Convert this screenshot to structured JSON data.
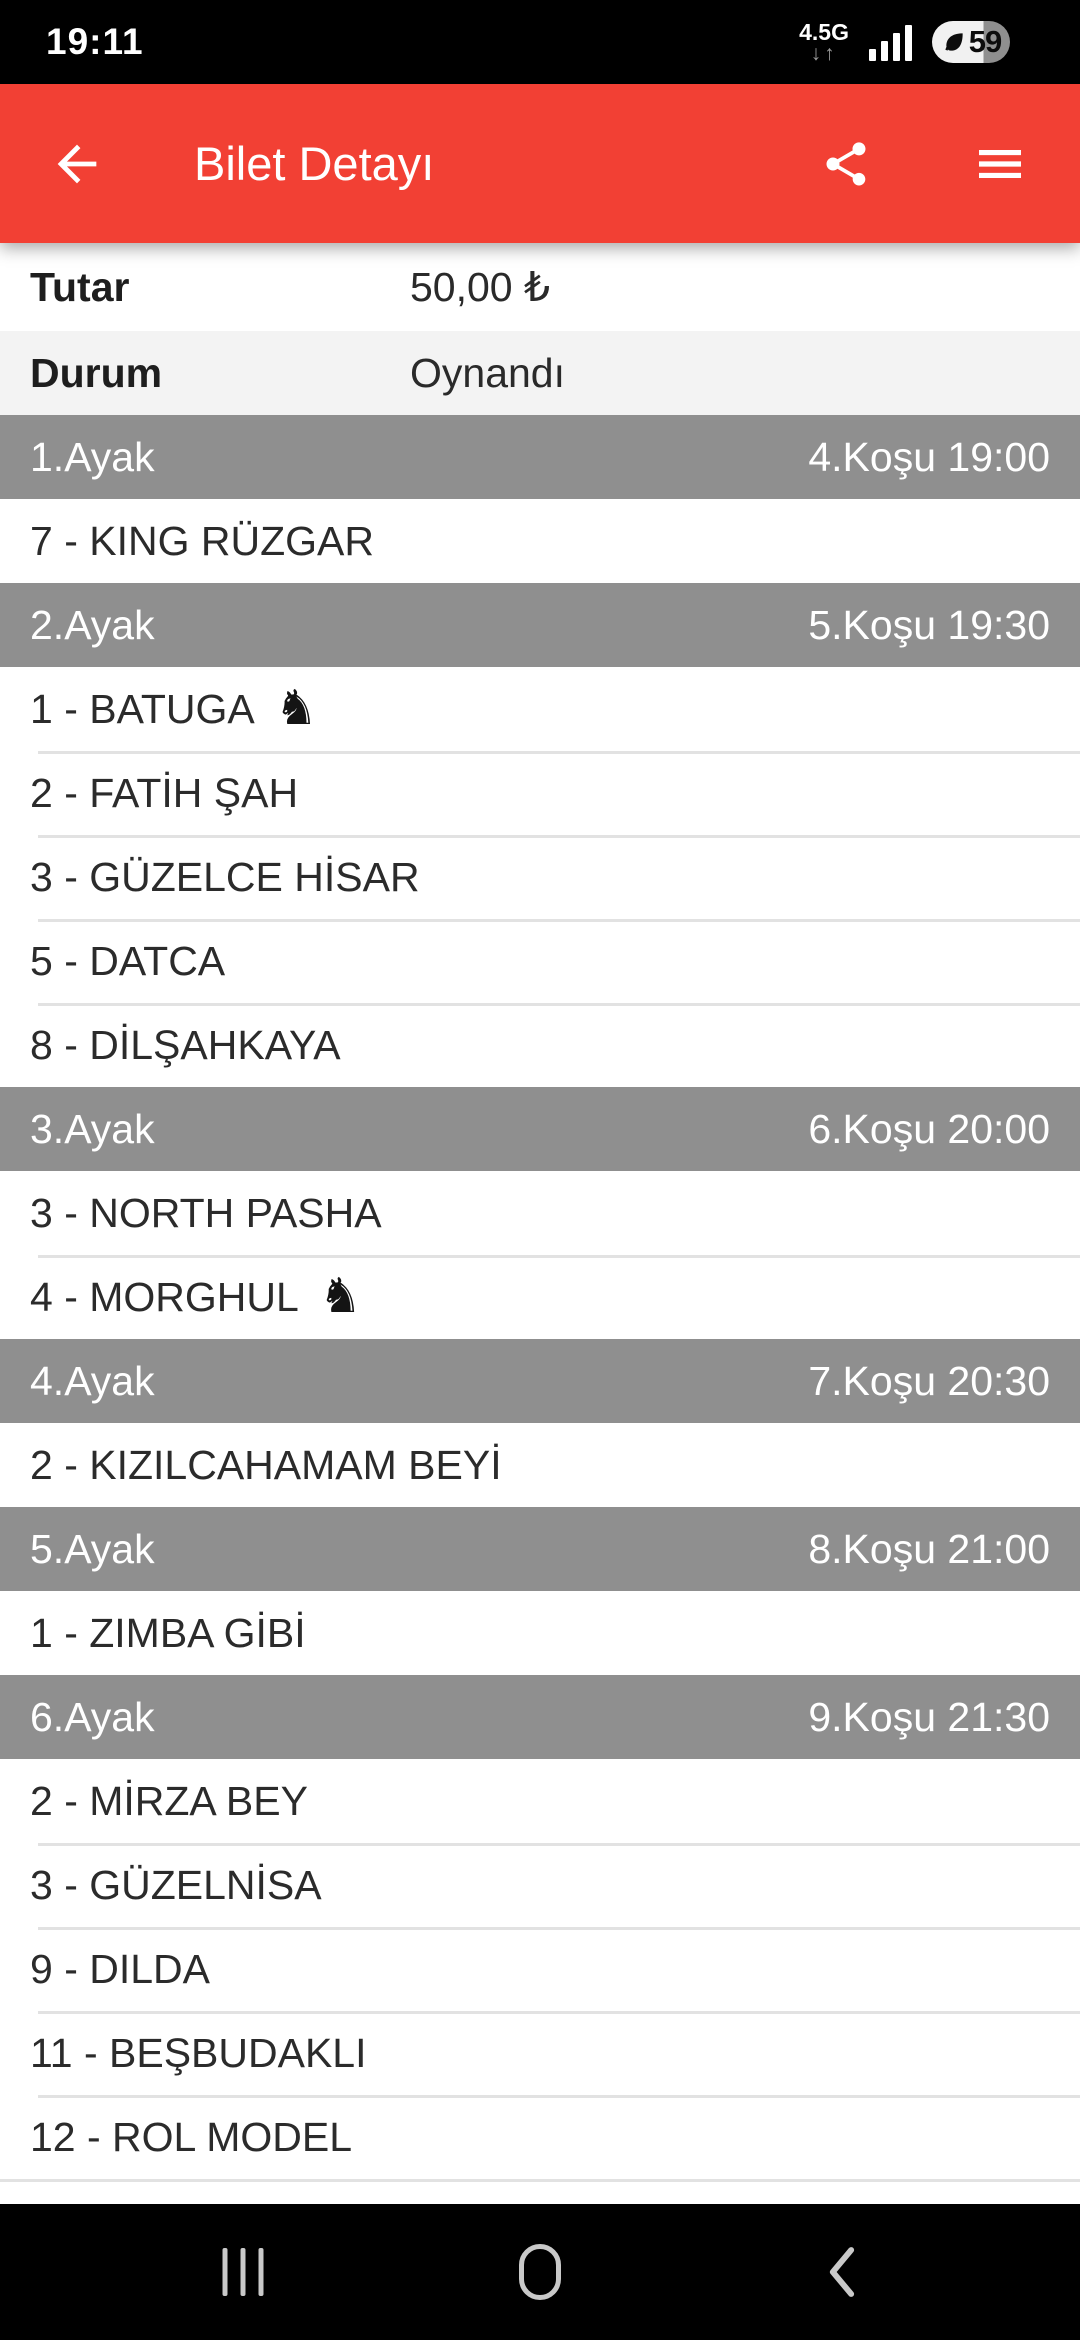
{
  "colors": {
    "app_bar": "#F24034",
    "section_header": "#8F8F8F",
    "status_row_bg": "#F3F3F3",
    "divider": "#E2E2E2",
    "status_bar_bg": "#000000",
    "nav_icon": "#C9C9C9"
  },
  "status_bar": {
    "time": "19:11",
    "network_label": "4.5G",
    "network_arrows": "↓↑",
    "battery_level": "59"
  },
  "app_bar": {
    "title": "Bilet Detayı"
  },
  "ticket": {
    "amount_label": "Tutar",
    "amount_value": "50,00 ₺",
    "status_label": "Durum",
    "status_value": "Oynandı"
  },
  "legs": [
    {
      "leg": "1.Ayak",
      "race": "4.Koşu 19:00",
      "horses": [
        {
          "name": "7 - KING RÜZGAR",
          "has_icon": false
        }
      ]
    },
    {
      "leg": "2.Ayak",
      "race": "5.Koşu 19:30",
      "horses": [
        {
          "name": "1 - BATUGA",
          "has_icon": true
        },
        {
          "name": "2 - FATİH ŞAH",
          "has_icon": false
        },
        {
          "name": "3 - GÜZELCE HİSAR",
          "has_icon": false
        },
        {
          "name": "5 - DATCA",
          "has_icon": false
        },
        {
          "name": "8 - DİLŞAHKAYA",
          "has_icon": false
        }
      ]
    },
    {
      "leg": "3.Ayak",
      "race": "6.Koşu 20:00",
      "horses": [
        {
          "name": "3 - NORTH PASHA",
          "has_icon": false
        },
        {
          "name": "4 - MORGHUL",
          "has_icon": true
        }
      ]
    },
    {
      "leg": "4.Ayak",
      "race": "7.Koşu 20:30",
      "horses": [
        {
          "name": "2 - KIZILCAHAMAM BEYİ",
          "has_icon": false
        }
      ]
    },
    {
      "leg": "5.Ayak",
      "race": "8.Koşu 21:00",
      "horses": [
        {
          "name": "1 - ZIMBA GİBİ",
          "has_icon": false
        }
      ]
    },
    {
      "leg": "6.Ayak",
      "race": "9.Koşu 21:30",
      "horses": [
        {
          "name": "2 - MİRZA BEY",
          "has_icon": false
        },
        {
          "name": "3 - GÜZELNİSA",
          "has_icon": false
        },
        {
          "name": "9 - DILDA",
          "has_icon": false
        },
        {
          "name": "11 - BEŞBUDAKLI",
          "has_icon": false
        },
        {
          "name": "12 - ROL MODEL",
          "has_icon": false
        }
      ]
    }
  ],
  "icons": {
    "back": "arrow-left",
    "share": "share-nodes",
    "menu": "hamburger",
    "horse_glyph": "♞",
    "battery_saver": "leaf",
    "signal": "signal-bars",
    "nav_recents": "recents-bars",
    "nav_home": "home-outline",
    "nav_back": "chevron-left"
  }
}
